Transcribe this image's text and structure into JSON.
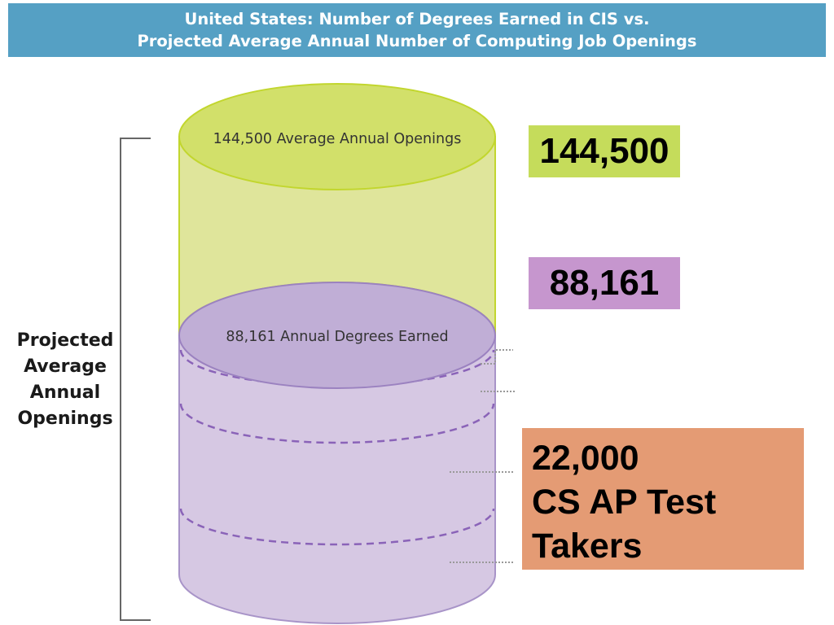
{
  "title": {
    "line1": "United States: Number of Degrees Earned in CIS vs.",
    "line2": "Projected Average Annual Number of Computing Job Openings"
  },
  "cylinder": {
    "top_label": "144,500 Average Annual Openings",
    "middle_label": "88,161 Annual Degrees Earned"
  },
  "bracket_label": {
    "lines": [
      "Projected",
      "Average",
      "Annual",
      "Openings"
    ]
  },
  "boxes": {
    "openings": "144,500",
    "degrees": "88,161",
    "ap_line1": "22,000",
    "ap_line2": "CS AP Test",
    "ap_line3": "Takers"
  },
  "colors": {
    "banner": "#55a0c4",
    "green_fill": "#dfe59b",
    "green_top": "#d2e06a",
    "green_stroke": "#c2d62e",
    "purple_fill": "#d6c8e3",
    "purple_top": "#c0aed6",
    "purple_stroke": "#9b82c0",
    "dashed": "#8a63b8",
    "box_openings": "#c5dc5b",
    "box_degrees": "#c696ce",
    "box_ap": "#e49b74"
  }
}
